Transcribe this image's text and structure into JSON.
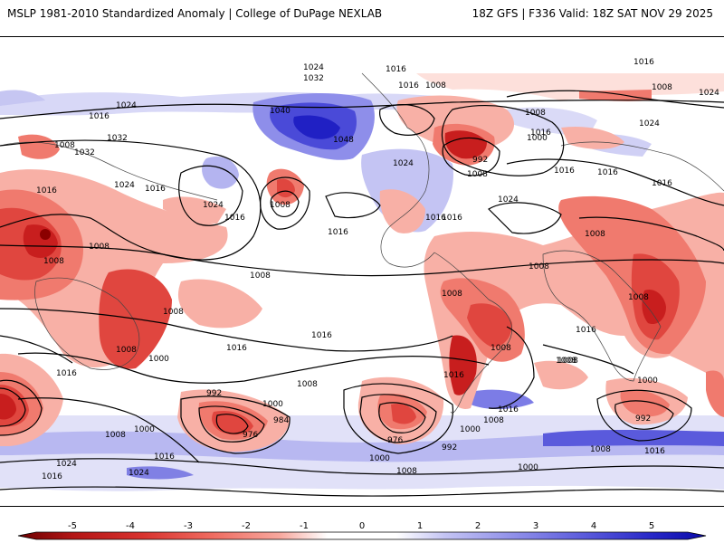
{
  "header": {
    "title": "MSLP 1981-2010 Standardized Anomaly | College of DuPage NEXLAB",
    "valid": "18Z GFS | F336 Valid: 18Z SAT NOV 29 2025"
  },
  "colorbar": {
    "ticks": [
      "-5",
      "-4",
      "-3",
      "-2",
      "-1",
      "0",
      "1",
      "2",
      "3",
      "4",
      "5"
    ],
    "colors": {
      "neg5": "#8b0000",
      "neg4": "#c81e1e",
      "neg3": "#e0463f",
      "neg2": "#f07a6e",
      "neg1": "#f8b0a6",
      "zero": "#ffffff",
      "pos1": "#c8c8f5",
      "pos2": "#9a9aee",
      "pos3": "#6c6ce4",
      "pos4": "#3b3bd6",
      "pos5": "#1010c0"
    }
  },
  "isobars": {
    "l1": "1024",
    "l2": "1032",
    "l3": "1016",
    "l4": "1008",
    "l5": "1016",
    "l6": "1024",
    "l7": "1016",
    "l8": "1032",
    "l9": "1032",
    "l10": "1024",
    "l11": "1016",
    "l12": "1016",
    "l13": "1008",
    "l14": "1008",
    "l15": "1040",
    "l16": "1048",
    "l17": "1024",
    "l18": "1016",
    "l19": "1008",
    "l20": "1016",
    "l21": "1024",
    "l22": "1016",
    "l23": "1008",
    "l24": "1008",
    "l25": "1000",
    "l26": "992",
    "l27": "1008",
    "l28": "1016",
    "l29": "1024",
    "l30": "1024",
    "l31": "1016",
    "l32": "1016",
    "l33": "1024",
    "l34": "1016",
    "l35": "1008",
    "l36": "1008",
    "l37": "1008",
    "l38": "1008",
    "l39": "1008",
    "l40": "1008",
    "l41": "1016",
    "l42": "1000",
    "l43": "1008",
    "l44": "1016",
    "l45": "1016",
    "l46": "1016",
    "l47": "1008",
    "l48": "1008",
    "l49": "1008",
    "l50": "1016",
    "l51": "1008",
    "l52": "1016",
    "l53": "992",
    "l54": "1000",
    "l55": "984",
    "l56": "976",
    "l57": "1000",
    "l58": "1008",
    "l59": "1016",
    "l60": "1024",
    "l61": "1024",
    "l62": "1016",
    "l63": "976",
    "l64": "992",
    "l65": "1000",
    "l66": "1008",
    "l67": "1000",
    "l68": "1008",
    "l69": "1000",
    "l70": "1016",
    "l71": "1000",
    "l72": "992",
    "l73": "1008",
    "l74": "1016",
    "l75": "1016",
    "l76": "1008"
  }
}
